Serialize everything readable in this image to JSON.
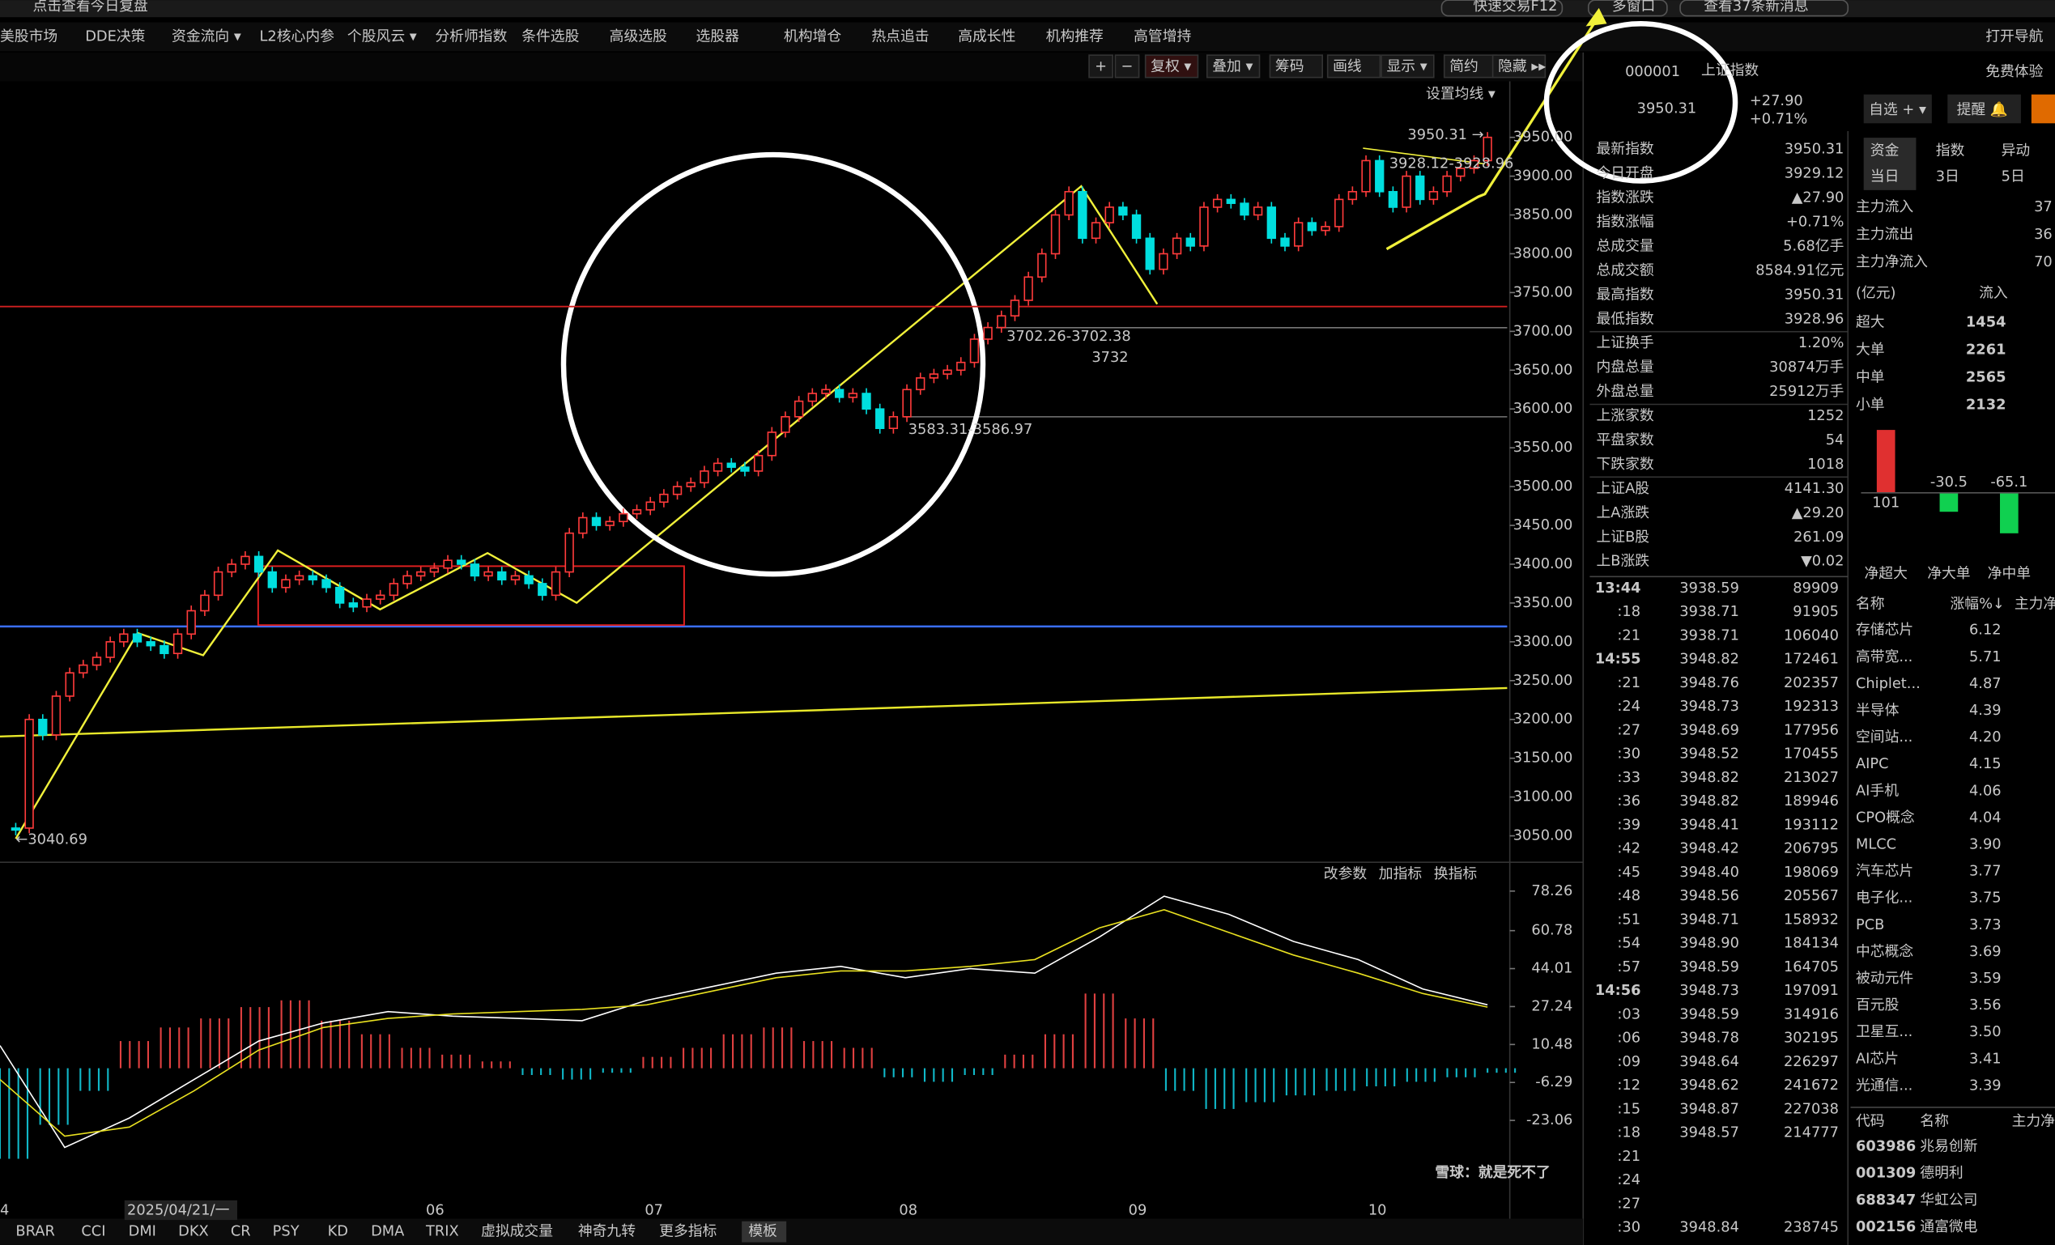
{
  "top_bar": {
    "review": "点击查看今日复盘",
    "quick_trade": "快速交易F12",
    "multi_window": "多窗口",
    "messages": "查看37条新消息"
  },
  "menu": [
    "美股市场",
    "DDE决策",
    "资金流向 ▾",
    "L2核心内参",
    "个股风云 ▾",
    "分析师指数",
    "条件选股",
    "高级选股",
    "选股器",
    "机构增仓",
    "热点追击",
    "高成长性",
    "机构推荐",
    "高管增持"
  ],
  "nav": "打开导航",
  "toolbar": [
    "+",
    "−",
    "复权 ▾",
    "叠加 ▾",
    "筹码",
    "画线",
    "显示 ▾",
    "简约",
    "隐藏 ▸▸"
  ],
  "ma_setting": "设置均线 ▾",
  "price_chart": {
    "closes": [
      3060,
      3200,
      3180,
      3230,
      3260,
      3270,
      3280,
      3300,
      3310,
      3300,
      3295,
      3285,
      3310,
      3340,
      3360,
      3390,
      3400,
      3410,
      3390,
      3370,
      3380,
      3385,
      3380,
      3370,
      3350,
      3345,
      3355,
      3360,
      3375,
      3385,
      3390,
      3395,
      3405,
      3400,
      3385,
      3390,
      3380,
      3385,
      3375,
      3360,
      3390,
      3440,
      3460,
      3450,
      3455,
      3465,
      3470,
      3480,
      3490,
      3500,
      3505,
      3520,
      3530,
      3525,
      3520,
      3540,
      3570,
      3590,
      3610,
      3620,
      3625,
      3615,
      3620,
      3600,
      3575,
      3590,
      3625,
      3640,
      3645,
      3650,
      3660,
      3690,
      3705,
      3720,
      3740,
      3770,
      3800,
      3850,
      3880,
      3820,
      3840,
      3860,
      3850,
      3820,
      3780,
      3800,
      3820,
      3810,
      3860,
      3870,
      3865,
      3850,
      3860,
      3820,
      3810,
      3840,
      3830,
      3835,
      3870,
      3880,
      3920,
      3880,
      3860,
      3900,
      3870,
      3880,
      3900,
      3910,
      3920,
      3950
    ],
    "ylim": [
      3021,
      4012
    ],
    "yticks": [
      {
        "value": 3950,
        "label": "3950.00"
      },
      {
        "value": 3900,
        "label": "3900.00"
      },
      {
        "value": 3850,
        "label": "3850.00"
      },
      {
        "value": 3800,
        "label": "3800.00"
      },
      {
        "value": 3750,
        "label": "3750.00"
      },
      {
        "value": 3700,
        "label": "3700.00"
      },
      {
        "value": 3650,
        "label": "3650.00"
      },
      {
        "value": 3600,
        "label": "3600.00"
      },
      {
        "value": 3550,
        "label": "3550.00"
      },
      {
        "value": 3500,
        "label": "3500.00"
      },
      {
        "value": 3450,
        "label": "3450.00"
      },
      {
        "value": 3400,
        "label": "3400.00"
      },
      {
        "value": 3350,
        "label": "3350.00"
      },
      {
        "value": 3300,
        "label": "3300.00"
      },
      {
        "value": 3250,
        "label": "3250.00"
      },
      {
        "value": 3200,
        "label": "3200.00"
      },
      {
        "value": 3150,
        "label": "3150.00"
      },
      {
        "value": 3100,
        "label": "3100.00"
      },
      {
        "value": 3050,
        "label": "3050.00"
      }
    ],
    "annotations": [
      "3950.31 →",
      "3928.12-3928.96",
      "3702.26-3702.38",
      "3583.31-3586.97",
      "←3040.69"
    ],
    "level": {
      "value": 3732,
      "label": "3732"
    },
    "x_labels": [
      "4",
      "2025/04/21/一",
      "06",
      "07",
      "08",
      "09",
      "10"
    ]
  },
  "indicator": {
    "buttons": [
      "改参数",
      "加指标",
      "换指标"
    ],
    "ylim": [
      -52,
      85.2
    ],
    "yticks": [
      78.26,
      60.78,
      44.01,
      27.24,
      10.48,
      -6.29,
      -23.06
    ],
    "line1": [
      10,
      -35,
      -22,
      -5,
      12,
      20,
      25,
      23,
      22,
      21,
      30,
      36,
      42,
      45,
      40,
      44,
      42,
      58,
      76,
      68,
      56,
      48,
      35,
      28
    ],
    "line2": [
      -5,
      -30,
      -26,
      -10,
      8,
      18,
      22,
      24,
      25,
      26,
      28,
      34,
      40,
      43,
      43,
      45,
      48,
      62,
      70,
      60,
      50,
      42,
      33,
      27
    ],
    "bars": [
      -40,
      -25,
      -10,
      12,
      18,
      22,
      27,
      30,
      21,
      15,
      9,
      6,
      3,
      -3,
      -5,
      -2,
      5,
      9,
      15,
      18,
      12,
      9,
      -4,
      -6,
      -3,
      6,
      15,
      33,
      22,
      -10,
      -18,
      -15,
      -12,
      -10,
      -8,
      -6,
      -4,
      -2
    ]
  },
  "bottom_tabs": [
    "BRAR",
    "CCI",
    "DMI",
    "DKX",
    "CR",
    "PSY",
    "KD",
    "DMA",
    "TRIX",
    "虚拟成交量",
    "神奇九转",
    "更多指标",
    "模板"
  ],
  "quote": {
    "code": "000001",
    "name": "上证指数",
    "price": "3950.31",
    "change": "+27.90",
    "pct": "+0.71%",
    "trial": "免费体验",
    "watch": "自选 + ▾",
    "alert": "提醒 🔔",
    "rows": [
      [
        "最新指数",
        "3950.31"
      ],
      [
        "今日开盘",
        "3929.12"
      ],
      [
        "指数涨跌",
        "▲27.90"
      ],
      [
        "指数涨幅",
        "+0.71%"
      ],
      [
        "总成交量",
        "5.68亿手"
      ],
      [
        "总成交额",
        "8584.91亿元"
      ],
      [
        "最高指数",
        "3950.31"
      ],
      [
        "最低指数",
        "3928.96"
      ],
      [
        "上证换手",
        "1.20%"
      ],
      [
        "内盘总量",
        "30874万手"
      ],
      [
        "外盘总量",
        "25912万手"
      ],
      [
        "上涨家数",
        "1252"
      ],
      [
        "平盘家数",
        "54"
      ],
      [
        "下跌家数",
        "1018"
      ],
      [
        "上证A股",
        "4141.30"
      ],
      [
        "上A涨跌",
        "▲29.20"
      ],
      [
        "上证B股",
        "261.09"
      ],
      [
        "上B涨跌",
        "▼0.02"
      ]
    ]
  },
  "ticks": [
    [
      "13:44",
      "3938.59",
      "89909"
    ],
    [
      ":18",
      "3938.71",
      "91905"
    ],
    [
      ":21",
      "3938.71",
      "106040"
    ],
    [
      "14:55",
      "3948.82",
      "172461"
    ],
    [
      ":21",
      "3948.76",
      "202357"
    ],
    [
      ":24",
      "3948.73",
      "192313"
    ],
    [
      ":27",
      "3948.69",
      "177956"
    ],
    [
      ":30",
      "3948.52",
      "170455"
    ],
    [
      ":33",
      "3948.82",
      "213027"
    ],
    [
      ":36",
      "3948.82",
      "189946"
    ],
    [
      ":39",
      "3948.41",
      "193112"
    ],
    [
      ":42",
      "3948.42",
      "206795"
    ],
    [
      ":45",
      "3948.40",
      "198069"
    ],
    [
      ":48",
      "3948.56",
      "205567"
    ],
    [
      ":51",
      "3948.71",
      "158932"
    ],
    [
      ":54",
      "3948.90",
      "184134"
    ],
    [
      ":57",
      "3948.59",
      "164705"
    ],
    [
      "14:56",
      "3948.73",
      "197091"
    ],
    [
      ":03",
      "3948.59",
      "314916"
    ],
    [
      ":06",
      "3948.78",
      "302195"
    ],
    [
      ":09",
      "3948.64",
      "226297"
    ],
    [
      ":12",
      "3948.62",
      "241672"
    ],
    [
      ":15",
      "3948.87",
      "227038"
    ],
    [
      ":18",
      "3948.57",
      "214777"
    ],
    [
      ":21"
    ],
    [
      ":24"
    ],
    [
      ":27"
    ],
    [
      ":30",
      "3948.84",
      "238745"
    ]
  ],
  "fund": {
    "tabs": [
      "资金",
      "指数",
      "异动"
    ],
    "periods": [
      "当日",
      "3日",
      "5日"
    ],
    "flows": [
      [
        "主力流入",
        "37"
      ],
      [
        "主力流出",
        "36"
      ],
      [
        "主力净流入",
        "70"
      ]
    ],
    "unit": "(亿元)",
    "inflow": "流入",
    "sizes": [
      [
        "超大",
        "1454"
      ],
      [
        "大单",
        "2261"
      ],
      [
        "中单",
        "2565"
      ],
      [
        "小单",
        "2132"
      ]
    ],
    "net": {
      "categories": [
        "净超大",
        "净大单",
        "净中单"
      ],
      "values": [
        101,
        -30.5,
        -65.1
      ]
    }
  },
  "sectors": {
    "header": [
      "名称",
      "涨幅%↓",
      "主力净"
    ],
    "rows": [
      [
        "存储芯片",
        "6.12"
      ],
      [
        "高带宽...",
        "5.71"
      ],
      [
        "Chiplet...",
        "4.87"
      ],
      [
        "半导体",
        "4.39"
      ],
      [
        "空间站...",
        "4.20"
      ],
      [
        "AIPC",
        "4.15"
      ],
      [
        "AI手机",
        "4.06"
      ],
      [
        "CPO概念",
        "4.04"
      ],
      [
        "MLCC",
        "3.90"
      ],
      [
        "汽车芯片",
        "3.77"
      ],
      [
        "电子化...",
        "3.75"
      ],
      [
        "PCB",
        "3.73"
      ],
      [
        "中芯概念",
        "3.69"
      ],
      [
        "被动元件",
        "3.59"
      ],
      [
        "百元股",
        "3.56"
      ],
      [
        "卫星互...",
        "3.50"
      ],
      [
        "AI芯片",
        "3.41"
      ],
      [
        "光通信...",
        "3.39"
      ]
    ]
  },
  "stocks": {
    "header": [
      "代码",
      "名称",
      "主力净"
    ],
    "rows": [
      [
        "603986",
        "兆易创新"
      ],
      [
        "001309",
        "德明利"
      ],
      [
        "688347",
        "华虹公司"
      ],
      [
        "002156",
        "通富微电"
      ]
    ]
  },
  "watermark": "雪球：就是死不了"
}
